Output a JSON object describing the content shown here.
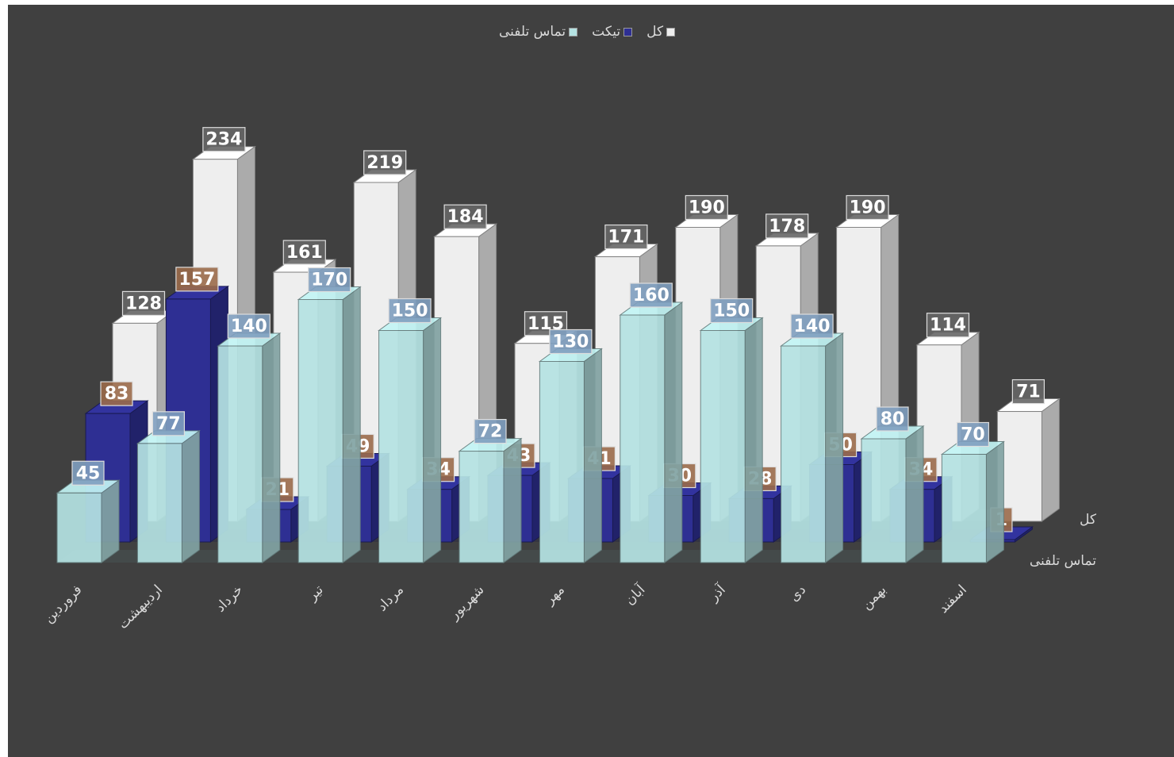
{
  "chart_data": {
    "type": "bar",
    "variant": "3d-column",
    "categories": [
      "فروردین",
      "اردیبهشت",
      "خرداد",
      "تیر",
      "مرداد",
      "شهریور",
      "مهر",
      "آبان",
      "آذر",
      "دی",
      "بهمن",
      "اسفند"
    ],
    "series": [
      {
        "name": "کل",
        "values": [
          128,
          234,
          161,
          219,
          184,
          115,
          171,
          190,
          178,
          190,
          114,
          71
        ],
        "color": "#eeeeee"
      },
      {
        "name": "تیکت",
        "values": [
          83,
          157,
          21,
          49,
          34,
          43,
          41,
          30,
          28,
          50,
          34,
          1
        ],
        "color": "#2e2f93"
      },
      {
        "name": "تماس تلفنی",
        "values": [
          45,
          77,
          140,
          170,
          150,
          72,
          130,
          160,
          150,
          140,
          80,
          70
        ],
        "color": "#b5e3e3"
      }
    ],
    "depth_labels": [
      "کل",
      "تماس تلفنی"
    ],
    "legend": "top",
    "grid": false
  },
  "colors": {
    "background": "#404040",
    "total_label_bg": "#666666",
    "ticket_label_bg": "#9a6a4a",
    "phone_label_bg": "#7f9fbf",
    "axis_text": "#d9d9d9"
  }
}
